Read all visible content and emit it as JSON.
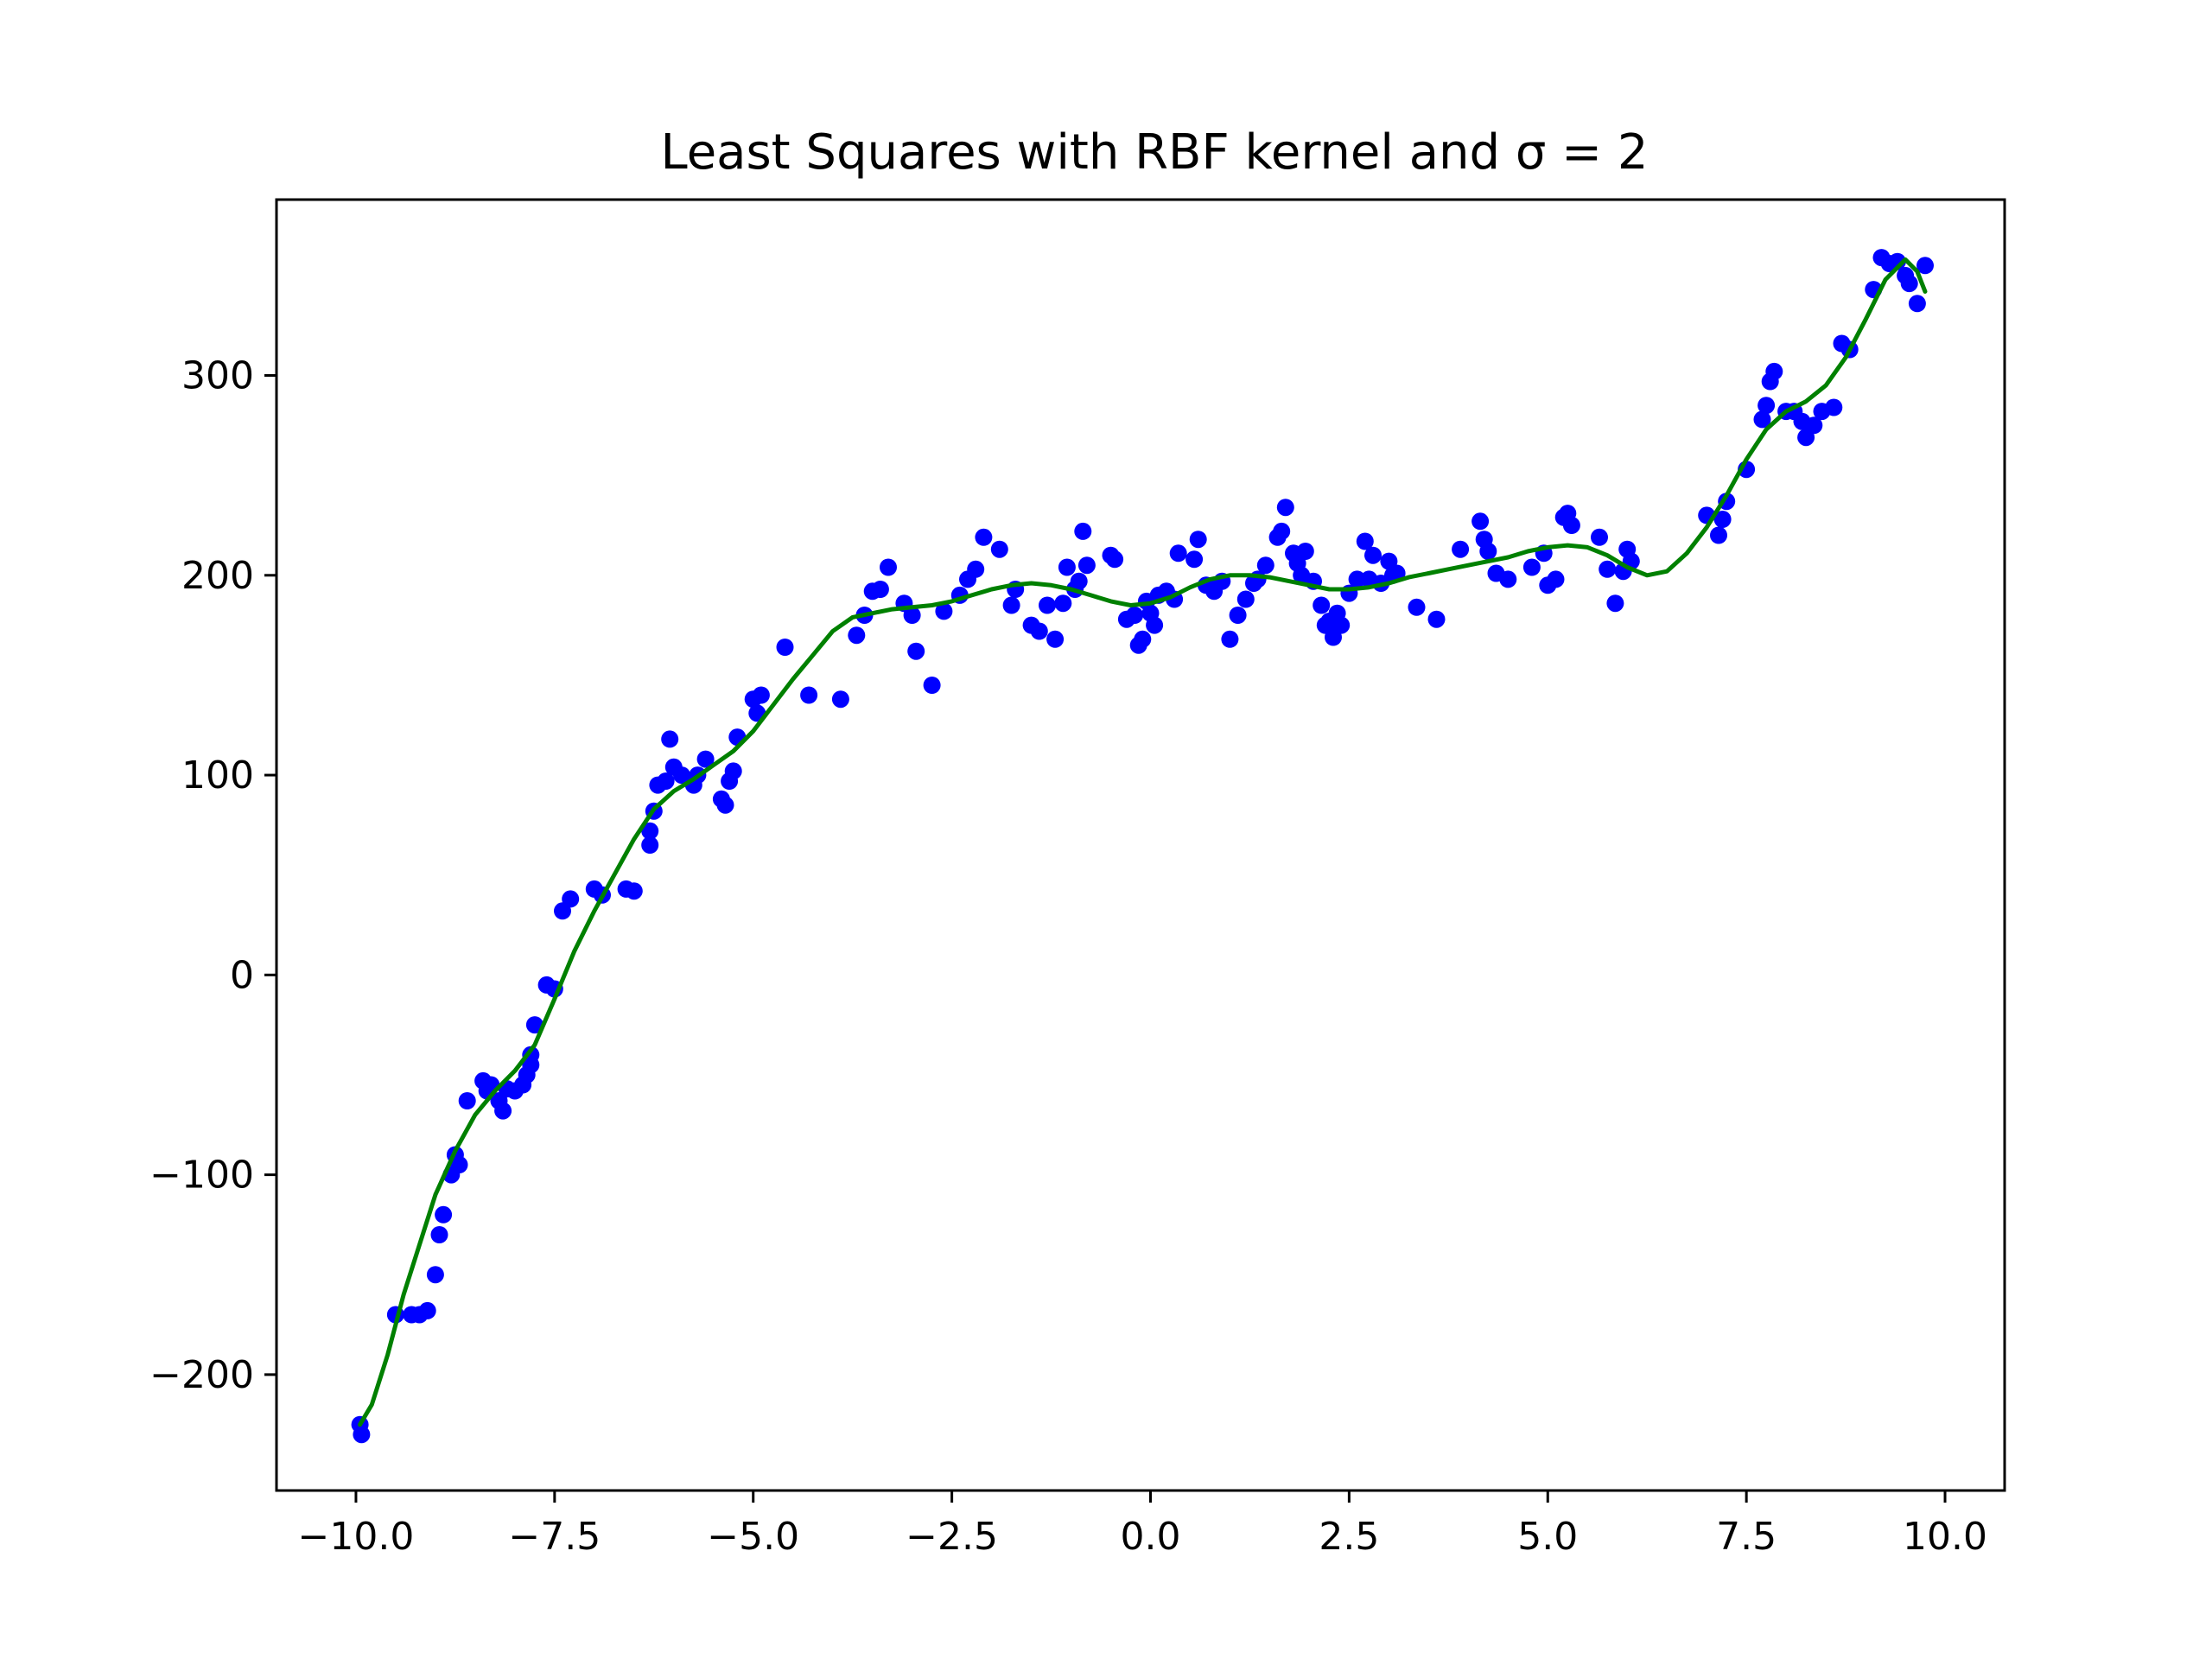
{
  "chart_data": {
    "type": "scatter",
    "title": "Least Squares with RBF kernel and σ = 2",
    "xlabel": "",
    "ylabel": "",
    "xlim": [
      -11.0,
      10.75
    ],
    "ylim": [
      -258,
      388
    ],
    "grid": false,
    "legend": "none",
    "x_ticks": [
      -10.0,
      -7.5,
      -5.0,
      -2.5,
      0.0,
      2.5,
      5.0,
      7.5,
      10.0
    ],
    "x_tick_labels": [
      "−10.0",
      "−7.5",
      "−5.0",
      "−2.5",
      "0.0",
      "2.5",
      "5.0",
      "7.5",
      "10.0"
    ],
    "y_ticks": [
      -200,
      -100,
      0,
      100,
      200,
      300
    ],
    "y_tick_labels": [
      "−200",
      "−100",
      "0",
      "100",
      "200",
      "300"
    ],
    "series": [
      {
        "kind": "scatter",
        "color": "#0000ff",
        "points": [
          [
            -9.95,
            -225
          ],
          [
            -9.93,
            -230
          ],
          [
            -9.5,
            -170
          ],
          [
            -9.3,
            -170
          ],
          [
            -9.2,
            -170
          ],
          [
            -9.1,
            -168
          ],
          [
            -9.0,
            -150
          ],
          [
            -8.95,
            -130
          ],
          [
            -8.9,
            -120
          ],
          [
            -8.8,
            -100
          ],
          [
            -8.75,
            -90
          ],
          [
            -8.7,
            -95
          ],
          [
            -8.6,
            -63
          ],
          [
            -8.4,
            -53
          ],
          [
            -8.35,
            -58
          ],
          [
            -8.3,
            -55
          ],
          [
            -8.2,
            -63
          ],
          [
            -8.15,
            -68
          ],
          [
            -8.1,
            -57
          ],
          [
            -8.0,
            -58
          ],
          [
            -7.9,
            -55
          ],
          [
            -7.85,
            -50
          ],
          [
            -7.8,
            -40
          ],
          [
            -7.8,
            -45
          ],
          [
            -7.75,
            -25
          ],
          [
            -7.6,
            -5
          ],
          [
            -7.5,
            -7
          ],
          [
            -7.4,
            32
          ],
          [
            -7.3,
            38
          ],
          [
            -7.0,
            43
          ],
          [
            -6.9,
            40
          ],
          [
            -6.6,
            43
          ],
          [
            -6.5,
            42
          ],
          [
            -6.3,
            65
          ],
          [
            -6.3,
            72
          ],
          [
            -6.25,
            82
          ],
          [
            -6.2,
            95
          ],
          [
            -6.1,
            97
          ],
          [
            -6.05,
            118
          ],
          [
            -6.0,
            104
          ],
          [
            -5.9,
            100
          ],
          [
            -5.75,
            95
          ],
          [
            -5.7,
            100
          ],
          [
            -5.6,
            108
          ],
          [
            -5.4,
            88
          ],
          [
            -5.35,
            85
          ],
          [
            -5.3,
            97
          ],
          [
            -5.25,
            102
          ],
          [
            -5.2,
            119
          ],
          [
            -5.0,
            138
          ],
          [
            -4.95,
            131
          ],
          [
            -4.9,
            140
          ],
          [
            -4.6,
            164
          ],
          [
            -4.3,
            140
          ],
          [
            -3.9,
            138
          ],
          [
            -3.7,
            170
          ],
          [
            -3.6,
            180
          ],
          [
            -3.5,
            192
          ],
          [
            -3.4,
            193
          ],
          [
            -3.3,
            204
          ],
          [
            -3.1,
            186
          ],
          [
            -3.0,
            180
          ],
          [
            -2.95,
            162
          ],
          [
            -2.75,
            145
          ],
          [
            -2.6,
            182
          ],
          [
            -2.4,
            190
          ],
          [
            -2.3,
            198
          ],
          [
            -2.2,
            203
          ],
          [
            -2.1,
            219
          ],
          [
            -1.9,
            213
          ],
          [
            -1.75,
            185
          ],
          [
            -1.7,
            193
          ],
          [
            -1.5,
            175
          ],
          [
            -1.4,
            172
          ],
          [
            -1.3,
            185
          ],
          [
            -1.2,
            168
          ],
          [
            -1.1,
            186
          ],
          [
            -1.05,
            204
          ],
          [
            -0.95,
            193
          ],
          [
            -0.9,
            197
          ],
          [
            -0.85,
            222
          ],
          [
            -0.8,
            205
          ],
          [
            -0.5,
            210
          ],
          [
            -0.45,
            208
          ],
          [
            -0.3,
            178
          ],
          [
            -0.2,
            180
          ],
          [
            -0.15,
            165
          ],
          [
            -0.1,
            168
          ],
          [
            -0.05,
            187
          ],
          [
            0.0,
            181
          ],
          [
            0.05,
            175
          ],
          [
            0.1,
            190
          ],
          [
            0.2,
            192
          ],
          [
            0.3,
            188
          ],
          [
            0.35,
            211
          ],
          [
            0.55,
            208
          ],
          [
            0.6,
            218
          ],
          [
            0.7,
            195
          ],
          [
            0.8,
            192
          ],
          [
            0.9,
            197
          ],
          [
            1.0,
            168
          ],
          [
            1.1,
            180
          ],
          [
            1.2,
            188
          ],
          [
            1.3,
            196
          ],
          [
            1.35,
            198
          ],
          [
            1.45,
            205
          ],
          [
            1.6,
            219
          ],
          [
            1.65,
            222
          ],
          [
            1.7,
            234
          ],
          [
            1.8,
            211
          ],
          [
            1.85,
            206
          ],
          [
            1.9,
            200
          ],
          [
            1.95,
            212
          ],
          [
            2.05,
            197
          ],
          [
            2.15,
            185
          ],
          [
            2.2,
            175
          ],
          [
            2.25,
            177
          ],
          [
            2.3,
            169
          ],
          [
            2.35,
            181
          ],
          [
            2.4,
            175
          ],
          [
            2.5,
            191
          ],
          [
            2.6,
            198
          ],
          [
            2.7,
            217
          ],
          [
            2.75,
            198
          ],
          [
            2.8,
            210
          ],
          [
            2.9,
            196
          ],
          [
            3.0,
            207
          ],
          [
            3.05,
            200
          ],
          [
            3.1,
            201
          ],
          [
            3.35,
            184
          ],
          [
            3.6,
            178
          ],
          [
            3.9,
            213
          ],
          [
            4.15,
            227
          ],
          [
            4.2,
            218
          ],
          [
            4.25,
            212
          ],
          [
            4.35,
            201
          ],
          [
            4.5,
            198
          ],
          [
            4.8,
            204
          ],
          [
            4.95,
            211
          ],
          [
            5.0,
            195
          ],
          [
            5.1,
            198
          ],
          [
            5.2,
            229
          ],
          [
            5.25,
            231
          ],
          [
            5.3,
            225
          ],
          [
            5.65,
            219
          ],
          [
            5.75,
            203
          ],
          [
            5.85,
            186
          ],
          [
            5.95,
            202
          ],
          [
            6.0,
            213
          ],
          [
            6.05,
            207
          ],
          [
            7.0,
            230
          ],
          [
            7.15,
            220
          ],
          [
            7.2,
            228
          ],
          [
            7.25,
            237
          ],
          [
            7.5,
            253
          ],
          [
            7.7,
            278
          ],
          [
            7.75,
            285
          ],
          [
            7.8,
            297
          ],
          [
            7.85,
            302
          ],
          [
            8.0,
            282
          ],
          [
            8.1,
            282
          ],
          [
            8.2,
            277
          ],
          [
            8.25,
            269
          ],
          [
            8.35,
            275
          ],
          [
            8.45,
            282
          ],
          [
            8.6,
            284
          ],
          [
            8.7,
            316
          ],
          [
            8.8,
            313
          ],
          [
            9.1,
            343
          ],
          [
            9.2,
            359
          ],
          [
            9.3,
            356
          ],
          [
            9.4,
            357
          ],
          [
            9.5,
            350
          ],
          [
            9.55,
            346
          ],
          [
            9.65,
            336
          ],
          [
            9.75,
            355
          ]
        ]
      },
      {
        "kind": "line",
        "color": "#008000",
        "points": [
          [
            -9.95,
            -225
          ],
          [
            -9.8,
            -215
          ],
          [
            -9.6,
            -190
          ],
          [
            -9.4,
            -160
          ],
          [
            -9.2,
            -135
          ],
          [
            -9.0,
            -110
          ],
          [
            -8.75,
            -88
          ],
          [
            -8.5,
            -70
          ],
          [
            -8.25,
            -58
          ],
          [
            -8.0,
            -48
          ],
          [
            -7.75,
            -35
          ],
          [
            -7.5,
            -12
          ],
          [
            -7.25,
            12
          ],
          [
            -7.0,
            32
          ],
          [
            -6.75,
            50
          ],
          [
            -6.5,
            68
          ],
          [
            -6.25,
            83
          ],
          [
            -6.0,
            92
          ],
          [
            -5.75,
            98
          ],
          [
            -5.5,
            105
          ],
          [
            -5.25,
            112
          ],
          [
            -5.0,
            122
          ],
          [
            -4.75,
            135
          ],
          [
            -4.5,
            148
          ],
          [
            -4.25,
            160
          ],
          [
            -4.0,
            172
          ],
          [
            -3.75,
            179
          ],
          [
            -3.5,
            181
          ],
          [
            -3.25,
            183
          ],
          [
            -3.0,
            184
          ],
          [
            -2.75,
            185
          ],
          [
            -2.5,
            187
          ],
          [
            -2.25,
            190
          ],
          [
            -2.0,
            193
          ],
          [
            -1.75,
            195
          ],
          [
            -1.5,
            196
          ],
          [
            -1.25,
            195
          ],
          [
            -1.0,
            193
          ],
          [
            -0.75,
            190
          ],
          [
            -0.5,
            187
          ],
          [
            -0.25,
            185
          ],
          [
            0.0,
            186
          ],
          [
            0.25,
            189
          ],
          [
            0.5,
            194
          ],
          [
            0.75,
            198
          ],
          [
            1.0,
            200
          ],
          [
            1.25,
            200
          ],
          [
            1.5,
            199
          ],
          [
            1.75,
            197
          ],
          [
            2.0,
            195
          ],
          [
            2.25,
            193
          ],
          [
            2.5,
            193
          ],
          [
            2.75,
            194
          ],
          [
            3.0,
            196
          ],
          [
            3.25,
            199
          ],
          [
            3.5,
            201
          ],
          [
            3.75,
            203
          ],
          [
            4.0,
            205
          ],
          [
            4.25,
            207
          ],
          [
            4.5,
            209
          ],
          [
            4.75,
            212
          ],
          [
            5.0,
            214
          ],
          [
            5.25,
            215
          ],
          [
            5.5,
            214
          ],
          [
            5.75,
            210
          ],
          [
            6.0,
            204
          ],
          [
            6.25,
            200
          ],
          [
            6.5,
            202
          ],
          [
            6.75,
            211
          ],
          [
            7.0,
            224
          ],
          [
            7.25,
            240
          ],
          [
            7.5,
            258
          ],
          [
            7.75,
            273
          ],
          [
            8.0,
            282
          ],
          [
            8.25,
            287
          ],
          [
            8.5,
            295
          ],
          [
            8.75,
            309
          ],
          [
            9.0,
            328
          ],
          [
            9.25,
            348
          ],
          [
            9.5,
            358
          ],
          [
            9.65,
            352
          ],
          [
            9.75,
            342
          ]
        ]
      }
    ]
  }
}
